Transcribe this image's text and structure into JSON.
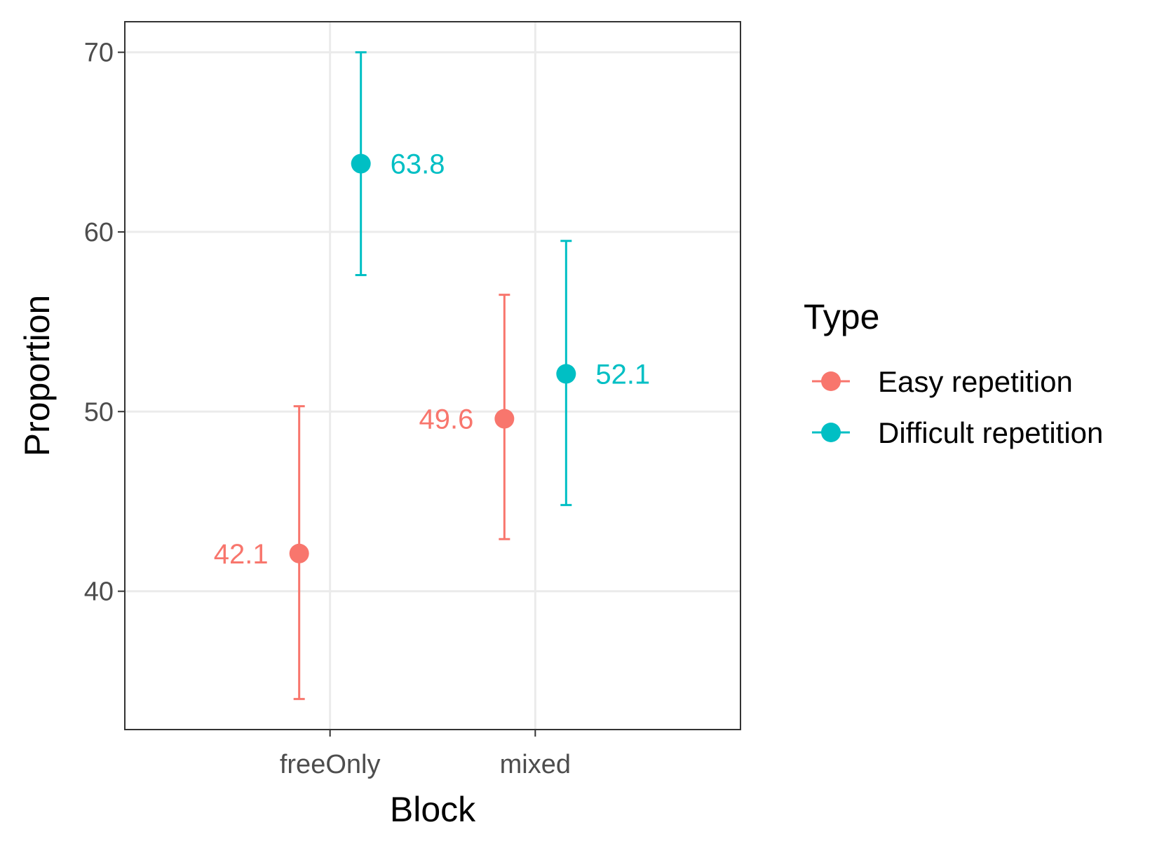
{
  "chart_data": {
    "type": "scatter",
    "title": "",
    "xlabel": "Block",
    "ylabel": "Proportion",
    "categories": [
      "freeOnly",
      "mixed"
    ],
    "ylim": [
      32.3,
      71.7
    ],
    "yticks": [
      40,
      50,
      60,
      70
    ],
    "grid": true,
    "legend": {
      "title": "Type",
      "position": "right"
    },
    "series": [
      {
        "name": "Easy repetition",
        "color": "#F8766D",
        "values": [
          42.1,
          49.6
        ],
        "labels": [
          "42.1",
          "49.6"
        ],
        "error_low": [
          34.0,
          42.9
        ],
        "error_high": [
          50.3,
          56.5
        ]
      },
      {
        "name": "Difficult repetition",
        "color": "#00BFC4",
        "values": [
          63.8,
          52.1
        ],
        "labels": [
          "63.8",
          "52.1"
        ],
        "error_low": [
          57.6,
          44.8
        ],
        "error_high": [
          70.0,
          59.5
        ]
      }
    ]
  }
}
